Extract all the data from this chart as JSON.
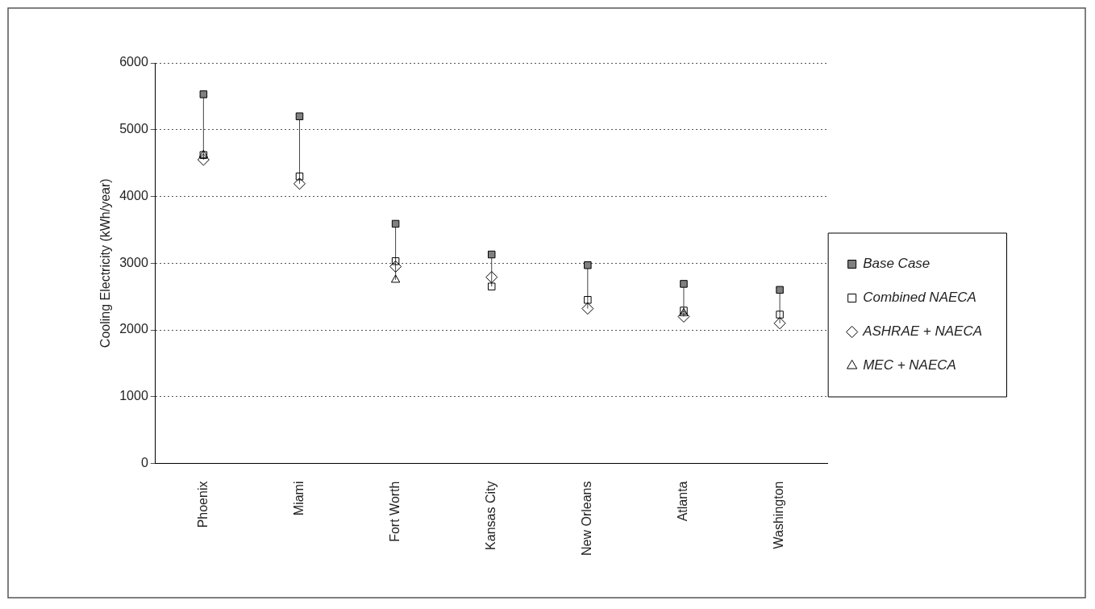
{
  "chart_data": {
    "type": "scatter",
    "ylabel": "Cooling Electricity (kWh/year)",
    "categories": [
      "Phoenix",
      "Miami",
      "Fort Worth",
      "Kansas City",
      "New Orleans",
      "Atlanta",
      "Washington"
    ],
    "series": [
      {
        "name": "Base Case",
        "color": "#808080",
        "marker": "square",
        "values": [
          5530,
          5200,
          3590,
          3130,
          2970,
          2690,
          2600
        ]
      },
      {
        "name": "Combined NAECA",
        "color": "#000000",
        "marker": "square",
        "values": [
          4620,
          4300,
          3030,
          2650,
          2450,
          2290,
          2230
        ]
      },
      {
        "name": "ASHRAE + NAECA",
        "color": "#000000",
        "marker": "diamond",
        "values": [
          4550,
          4190,
          2950,
          2790,
          2320,
          2200,
          2100
        ]
      },
      {
        "name": "MEC + NAECA",
        "color": "#000000",
        "marker": "triangle",
        "values": [
          4620,
          null,
          2750,
          null,
          null,
          2250,
          null
        ]
      }
    ],
    "ylim": [
      0,
      6000
    ],
    "yticks": [
      0,
      1000,
      2000,
      3000,
      4000,
      5000,
      6000
    ],
    "grid": "y",
    "legend": "right"
  }
}
